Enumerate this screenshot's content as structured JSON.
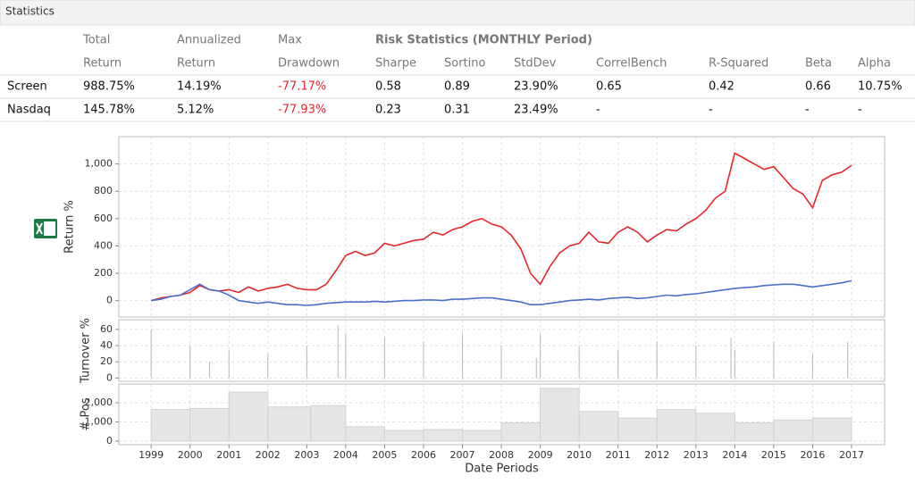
{
  "header": {
    "title": "Statistics"
  },
  "table": {
    "header_top": [
      "Total",
      "Annualized",
      "Max",
      "Risk Statistics (MONTHLY Period)"
    ],
    "header": [
      "Return",
      "Return",
      "Drawdown",
      "Sharpe",
      "Sortino",
      "StdDev",
      "CorrelBench",
      "R-Squared",
      "Beta",
      "Alpha"
    ],
    "rows": [
      [
        "Screen",
        "988.75%",
        "14.19%",
        "-77.17%",
        "0.58",
        "0.89",
        "23.90%",
        "0.65",
        "0.42",
        "0.66",
        "10.75%"
      ],
      [
        "Nasdaq",
        "145.78%",
        "5.12%",
        "-77.93%",
        "0.23",
        "0.31",
        "23.49%",
        "-",
        "-",
        "-",
        "-"
      ]
    ]
  },
  "chart_data": [
    {
      "type": "line",
      "y_label": "Return %",
      "x": [
        1999,
        1999.25,
        1999.5,
        1999.75,
        2000,
        2000.25,
        2000.5,
        2000.75,
        2001,
        2001.25,
        2001.5,
        2001.75,
        2002,
        2002.25,
        2002.5,
        2002.75,
        2003,
        2003.25,
        2003.5,
        2003.75,
        2004,
        2004.25,
        2004.5,
        2004.75,
        2005,
        2005.25,
        2005.5,
        2005.75,
        2006,
        2006.25,
        2006.5,
        2006.75,
        2007,
        2007.25,
        2007.5,
        2007.75,
        2008,
        2008.25,
        2008.5,
        2008.75,
        2009,
        2009.25,
        2009.5,
        2009.75,
        2010,
        2010.25,
        2010.5,
        2010.75,
        2011,
        2011.25,
        2011.5,
        2011.75,
        2012,
        2012.25,
        2012.5,
        2012.75,
        2013,
        2013.25,
        2013.5,
        2013.75,
        2014,
        2014.25,
        2014.5,
        2014.75,
        2015,
        2015.25,
        2015.5,
        2015.75,
        2016,
        2016.25,
        2016.5,
        2016.75,
        2017
      ],
      "series": [
        {
          "name": "Screen",
          "color": "#e8262a",
          "values": [
            0,
            20,
            30,
            40,
            60,
            110,
            80,
            70,
            80,
            60,
            100,
            70,
            90,
            100,
            120,
            90,
            80,
            80,
            120,
            220,
            330,
            360,
            330,
            350,
            420,
            400,
            420,
            440,
            450,
            500,
            480,
            520,
            540,
            580,
            600,
            560,
            540,
            480,
            380,
            200,
            120,
            250,
            350,
            400,
            420,
            500,
            430,
            420,
            500,
            540,
            500,
            430,
            480,
            520,
            510,
            560,
            600,
            660,
            750,
            800,
            1080,
            1040,
            1000,
            960,
            980,
            900,
            820,
            780,
            680,
            880,
            920,
            940,
            990
          ]
        },
        {
          "name": "Nasdaq",
          "color": "#4a70c8",
          "values": [
            0,
            10,
            30,
            40,
            80,
            120,
            80,
            70,
            40,
            0,
            -10,
            -20,
            -10,
            -20,
            -30,
            -30,
            -35,
            -30,
            -20,
            -15,
            -10,
            -10,
            -10,
            -5,
            -10,
            -5,
            0,
            0,
            5,
            5,
            0,
            10,
            10,
            15,
            20,
            20,
            10,
            0,
            -10,
            -30,
            -30,
            -20,
            -10,
            0,
            5,
            10,
            5,
            15,
            20,
            25,
            15,
            20,
            30,
            40,
            35,
            45,
            50,
            60,
            70,
            80,
            90,
            95,
            100,
            110,
            115,
            120,
            120,
            110,
            100,
            110,
            120,
            130,
            145
          ]
        }
      ],
      "xlim": [
        1998.17,
        2017.85
      ],
      "xticks": [
        1999,
        2000,
        2001,
        2002,
        2003,
        2004,
        2005,
        2006,
        2007,
        2008,
        2009,
        2010,
        2011,
        2012,
        2013,
        2014,
        2015,
        2016,
        2017
      ],
      "ylim": [
        -120,
        1200
      ],
      "yticks": [
        0,
        200,
        400,
        600,
        800,
        {
          "value": 1000,
          "label": "1,000"
        }
      ],
      "grid": true
    },
    {
      "type": "bar",
      "y_label": "Turnover %",
      "color": "#b8b8b8",
      "x": [
        1999.0,
        2000.0,
        2000.5,
        2001.0,
        2002.0,
        2003.0,
        2003.8,
        2004.0,
        2005.0,
        2006.0,
        2007.0,
        2008.0,
        2008.9,
        2009.0,
        2010.0,
        2011.0,
        2012.0,
        2013.0,
        2013.9,
        2014.0,
        2015.0,
        2016.0,
        2016.9
      ],
      "values": [
        60,
        40,
        20,
        35,
        30,
        40,
        65,
        55,
        50,
        45,
        55,
        40,
        25,
        55,
        40,
        35,
        45,
        40,
        50,
        35,
        45,
        30,
        45
      ],
      "xlim": [
        1998.17,
        2017.85
      ],
      "xticks": [
        1999,
        2000,
        2001,
        2002,
        2003,
        2004,
        2005,
        2006,
        2007,
        2008,
        2009,
        2010,
        2011,
        2012,
        2013,
        2014,
        2015,
        2016,
        2017
      ],
      "ylim": [
        -4,
        72
      ],
      "yticks": [
        0,
        20,
        40,
        60
      ],
      "grid": true
    },
    {
      "type": "histogram",
      "y_label": "# Pos",
      "x_label": "Date Periods",
      "color": "#e6e6e6",
      "bins": [
        1999,
        2000,
        2001,
        2002,
        2003.1,
        2004,
        2005,
        2006,
        2007,
        2008,
        2009,
        2010,
        2011,
        2012,
        2013,
        2014,
        2015,
        2016,
        2017
      ],
      "counts": [
        1650,
        1700,
        2550,
        1780,
        1850,
        750,
        550,
        600,
        550,
        950,
        2750,
        1550,
        1200,
        1650,
        1450,
        950,
        1100,
        1200
      ],
      "xlim": [
        1998.17,
        2017.85
      ],
      "xticks": [
        1999,
        2000,
        2001,
        2002,
        2003,
        2004,
        2005,
        2006,
        2007,
        2008,
        2009,
        2010,
        2011,
        2012,
        2013,
        2014,
        2015,
        2016,
        2017
      ],
      "ylim": [
        -190,
        2980
      ],
      "yticks": [
        0,
        {
          "value": 1000,
          "label": "1,000"
        },
        {
          "value": 2000,
          "label": "2,000"
        }
      ],
      "grid": true
    }
  ]
}
